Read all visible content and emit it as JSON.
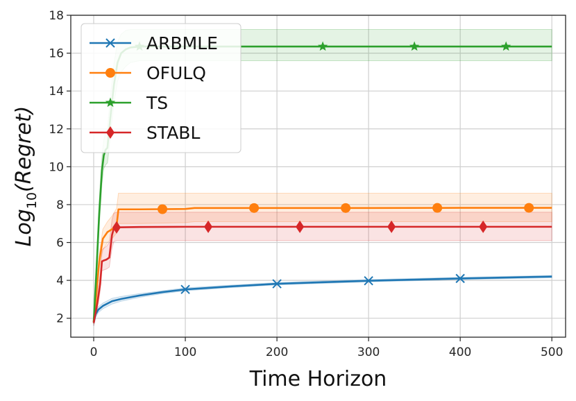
{
  "chart_data": {
    "type": "line",
    "xlabel": "Time Horizon",
    "ylabel_main": "Log",
    "ylabel_sub": "10",
    "ylabel_tail": "(Regret)",
    "xlim": [
      -25,
      515
    ],
    "ylim": [
      1,
      18
    ],
    "xticks": [
      0,
      100,
      200,
      300,
      400,
      500
    ],
    "yticks": [
      2,
      4,
      6,
      8,
      10,
      12,
      14,
      16,
      18
    ],
    "grid": true,
    "legend_position": "top-left",
    "series": [
      {
        "name": "ARBMLE",
        "color": "#1f77b4",
        "marker": "x",
        "marker_x": [
          100,
          200,
          300,
          400
        ],
        "x": [
          0,
          2,
          5,
          10,
          20,
          30,
          50,
          75,
          100,
          150,
          200,
          250,
          300,
          350,
          400,
          450,
          500
        ],
        "y": [
          1.75,
          2.2,
          2.45,
          2.65,
          2.9,
          3.02,
          3.2,
          3.38,
          3.52,
          3.68,
          3.82,
          3.9,
          3.98,
          4.04,
          4.1,
          4.15,
          4.2
        ],
        "band_upper": [
          1.9,
          2.35,
          2.6,
          2.8,
          3.05,
          3.15,
          3.3,
          3.45,
          3.6,
          3.75,
          3.88,
          3.97,
          4.04,
          4.1,
          4.16,
          4.21,
          4.26
        ],
        "band_lower": [
          1.6,
          2.05,
          2.3,
          2.5,
          2.75,
          2.9,
          3.1,
          3.3,
          3.45,
          3.62,
          3.76,
          3.84,
          3.92,
          3.98,
          4.04,
          4.09,
          4.14
        ]
      },
      {
        "name": "OFULQ",
        "color": "#ff7f0e",
        "marker": "o",
        "marker_x": [
          75,
          175,
          275,
          375,
          475
        ],
        "x": [
          0,
          3,
          6,
          10,
          15,
          20,
          25,
          27,
          50,
          100,
          110,
          200,
          300,
          400,
          500
        ],
        "y": [
          1.8,
          3.3,
          5.0,
          6.2,
          6.55,
          6.7,
          6.9,
          7.75,
          7.75,
          7.77,
          7.82,
          7.82,
          7.82,
          7.83,
          7.83
        ],
        "band_upper": [
          1.9,
          3.6,
          5.4,
          6.7,
          7.1,
          7.4,
          7.8,
          8.6,
          8.6,
          8.6,
          8.6,
          8.6,
          8.6,
          8.6,
          8.6
        ],
        "band_lower": [
          1.7,
          3.0,
          4.6,
          5.6,
          6.0,
          6.2,
          6.5,
          7.0,
          7.0,
          7.05,
          7.1,
          7.1,
          7.1,
          7.1,
          7.1
        ]
      },
      {
        "name": "TS",
        "color": "#2ca02c",
        "marker": "*",
        "marker_x": [
          50,
          250,
          350,
          450
        ],
        "x": [
          0,
          3,
          6,
          9,
          11,
          13,
          15,
          18,
          22,
          26,
          30,
          35,
          40,
          50,
          60,
          100,
          200,
          300,
          400,
          500
        ],
        "y": [
          1.8,
          4.5,
          7.5,
          9.8,
          10.6,
          10.9,
          11.0,
          12.5,
          14.3,
          15.5,
          16.0,
          16.2,
          16.3,
          16.35,
          16.35,
          16.35,
          16.35,
          16.35,
          16.35,
          16.35
        ],
        "band_upper": [
          1.9,
          5.0,
          8.2,
          10.5,
          11.4,
          11.8,
          12.0,
          13.6,
          15.4,
          16.6,
          17.0,
          17.2,
          17.25,
          17.25,
          17.25,
          17.25,
          17.25,
          17.25,
          17.25,
          17.25
        ],
        "band_lower": [
          1.7,
          4.0,
          6.8,
          9.1,
          9.9,
          10.1,
          10.2,
          11.5,
          13.3,
          14.5,
          15.0,
          15.3,
          15.5,
          15.6,
          15.6,
          15.6,
          15.6,
          15.6,
          15.6,
          15.6
        ]
      },
      {
        "name": "STABL",
        "color": "#d62728",
        "marker": "d",
        "marker_x": [
          25,
          125,
          225,
          325,
          425
        ],
        "x": [
          0,
          4,
          7,
          9,
          11,
          14,
          17,
          20,
          22,
          25,
          50,
          100,
          200,
          300,
          400,
          500
        ],
        "y": [
          1.75,
          2.8,
          3.8,
          5.0,
          5.05,
          5.1,
          5.2,
          6.4,
          6.75,
          6.8,
          6.82,
          6.83,
          6.83,
          6.83,
          6.83,
          6.83
        ],
        "band_upper": [
          1.9,
          3.2,
          4.3,
          5.6,
          5.7,
          5.8,
          6.0,
          7.2,
          7.55,
          7.6,
          7.6,
          7.6,
          7.6,
          7.6,
          7.6,
          7.6
        ],
        "band_lower": [
          1.6,
          2.5,
          3.4,
          4.5,
          4.55,
          4.6,
          4.7,
          5.7,
          6.05,
          6.1,
          6.1,
          6.1,
          6.1,
          6.1,
          6.1,
          6.1
        ]
      }
    ]
  }
}
